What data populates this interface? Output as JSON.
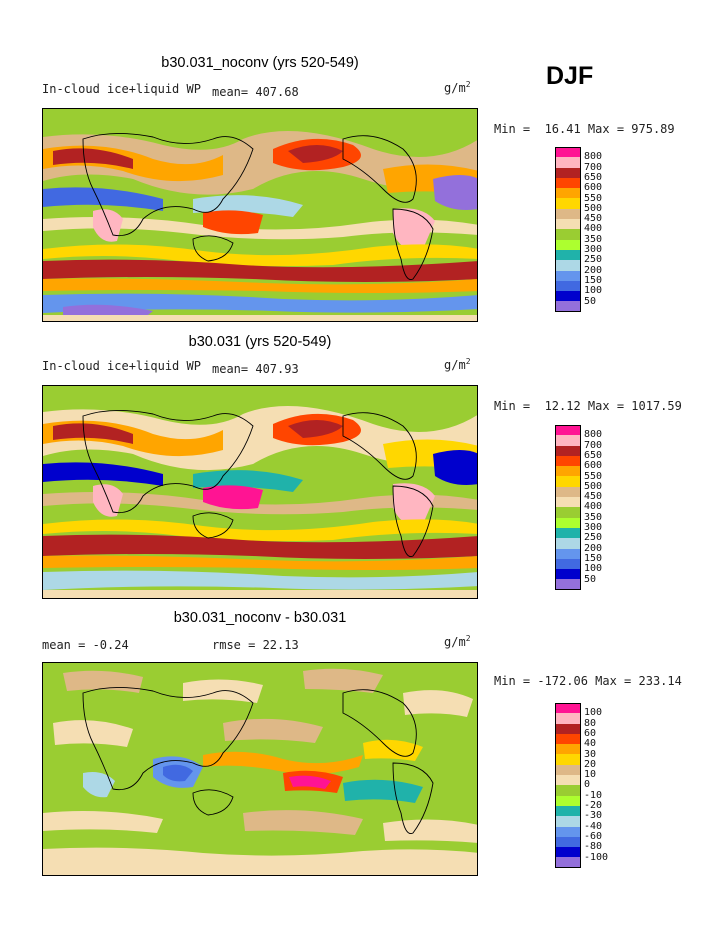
{
  "season": "DJF",
  "panels": [
    {
      "title": "b30.031_noconv (yrs 520-549)",
      "left_label": "In-cloud ice+liquid WP",
      "mean_label": "mean= 407.68",
      "units": "g/m",
      "units_exp": "2",
      "min_max": "Min =  16.41 Max = 975.89",
      "colorbar": {
        "labels": [
          "800",
          "700",
          "650",
          "600",
          "550",
          "500",
          "450",
          "400",
          "350",
          "300",
          "250",
          "200",
          "150",
          "100",
          "50"
        ],
        "colors": [
          "#ff1493",
          "#ffb6c1",
          "#b22222",
          "#ff4500",
          "#ffa500",
          "#ffd700",
          "#deb887",
          "#f5deb3",
          "#9acd32",
          "#adff2f",
          "#20b2aa",
          "#add8e6",
          "#6495ed",
          "#4169e1",
          "#0000cd",
          "#9370db"
        ]
      }
    },
    {
      "title": "b30.031 (yrs 520-549)",
      "left_label": "In-cloud ice+liquid WP",
      "mean_label": "mean= 407.93",
      "units": "g/m",
      "units_exp": "2",
      "min_max": "Min =  12.12 Max = 1017.59",
      "colorbar": {
        "labels": [
          "800",
          "700",
          "650",
          "600",
          "550",
          "500",
          "450",
          "400",
          "350",
          "300",
          "250",
          "200",
          "150",
          "100",
          "50"
        ],
        "colors": [
          "#ff1493",
          "#ffb6c1",
          "#b22222",
          "#ff4500",
          "#ffa500",
          "#ffd700",
          "#deb887",
          "#f5deb3",
          "#9acd32",
          "#adff2f",
          "#20b2aa",
          "#add8e6",
          "#6495ed",
          "#4169e1",
          "#0000cd",
          "#9370db"
        ]
      }
    },
    {
      "title": "b30.031_noconv - b30.031",
      "left_label": "mean =  -0.24",
      "mean_label": "rmse =  22.13",
      "units": "g/m",
      "units_exp": "2",
      "min_max": "Min = -172.06 Max = 233.14",
      "colorbar": {
        "labels": [
          "100",
          "80",
          "60",
          "40",
          "30",
          "20",
          "10",
          "0",
          "-10",
          "-20",
          "-30",
          "-40",
          "-60",
          "-80",
          "-100"
        ],
        "colors": [
          "#ff1493",
          "#ffb6c1",
          "#b22222",
          "#ff4500",
          "#ffa500",
          "#ffd700",
          "#deb887",
          "#f5deb3",
          "#9acd32",
          "#adff2f",
          "#20b2aa",
          "#add8e6",
          "#6495ed",
          "#4169e1",
          "#0000cd",
          "#9370db"
        ]
      }
    }
  ],
  "chart_data": [
    {
      "type": "heatmap",
      "title": "b30.031_noconv (yrs 520-549)",
      "field": "In-cloud ice+liquid WP",
      "mean": 407.68,
      "min": 16.41,
      "max": 975.89,
      "units": "g/m2",
      "contour_levels": [
        50,
        100,
        150,
        200,
        250,
        300,
        350,
        400,
        450,
        500,
        550,
        600,
        650,
        700,
        800
      ]
    },
    {
      "type": "heatmap",
      "title": "b30.031 (yrs 520-549)",
      "field": "In-cloud ice+liquid WP",
      "mean": 407.93,
      "min": 12.12,
      "max": 1017.59,
      "units": "g/m2",
      "contour_levels": [
        50,
        100,
        150,
        200,
        250,
        300,
        350,
        400,
        450,
        500,
        550,
        600,
        650,
        700,
        800
      ]
    },
    {
      "type": "heatmap",
      "title": "b30.031_noconv - b30.031",
      "mean": -0.24,
      "rmse": 22.13,
      "min": -172.06,
      "max": 233.14,
      "units": "g/m2",
      "contour_levels": [
        -100,
        -80,
        -60,
        -40,
        -30,
        -20,
        -10,
        0,
        10,
        20,
        30,
        40,
        60,
        80,
        100
      ]
    }
  ]
}
